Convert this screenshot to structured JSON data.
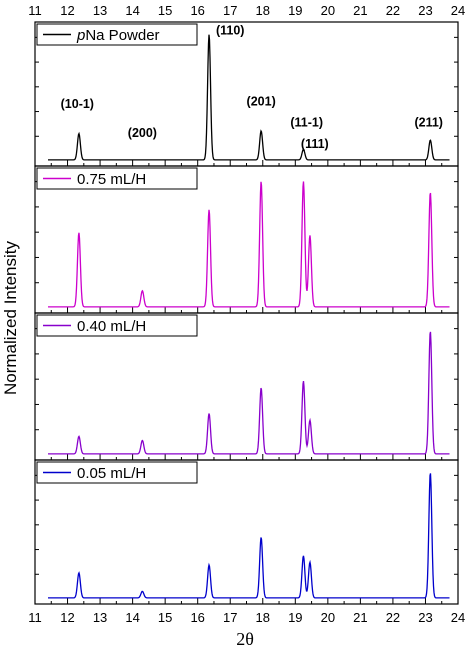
{
  "chart_data": {
    "type": "line",
    "xlabel": "2θ",
    "ylabel": "Normalized Intensity",
    "xlim": [
      11,
      24
    ],
    "x_ticks": [
      "11",
      "12",
      "13",
      "14",
      "15",
      "16",
      "17",
      "18",
      "19",
      "20",
      "21",
      "22",
      "23",
      "24"
    ],
    "grid": false,
    "legend_placement": "top-left of each panel",
    "panels": [
      {
        "name": "pNa Powder",
        "legend_label": {
          "italic": "p",
          "rest": "Na Powder"
        },
        "color": "#000000",
        "peaks": [
          {
            "x": 12.35,
            "h": 0.2
          },
          {
            "x": 16.35,
            "h": 0.95
          },
          {
            "x": 17.95,
            "h": 0.22
          },
          {
            "x": 19.25,
            "h": 0.08
          },
          {
            "x": 23.15,
            "h": 0.15
          }
        ],
        "annotations": [
          {
            "text": "(10-1)",
            "x": 12.3,
            "h": 0.4
          },
          {
            "text": "(200)",
            "x": 14.3,
            "h": 0.18
          },
          {
            "text": "(110)",
            "x": 17.0,
            "h": 0.96
          },
          {
            "text": "(201)",
            "x": 17.95,
            "h": 0.42
          },
          {
            "text": "(11-1)",
            "x": 19.35,
            "h": 0.26
          },
          {
            "text": "(111)",
            "x": 19.6,
            "h": 0.1
          },
          {
            "text": "(211)",
            "x": 23.1,
            "h": 0.26
          }
        ]
      },
      {
        "name": "0.75 mL/H",
        "legend_label": {
          "italic": "",
          "rest": "0.75 mL/H"
        },
        "color": "#cc00cc",
        "peaks": [
          {
            "x": 12.35,
            "h": 0.55
          },
          {
            "x": 14.3,
            "h": 0.12
          },
          {
            "x": 16.35,
            "h": 0.72
          },
          {
            "x": 17.95,
            "h": 0.93
          },
          {
            "x": 19.25,
            "h": 0.93
          },
          {
            "x": 19.45,
            "h": 0.53
          },
          {
            "x": 23.15,
            "h": 0.85
          }
        ]
      },
      {
        "name": "0.40 mL/H",
        "legend_label": {
          "italic": "",
          "rest": "0.40 mL/H"
        },
        "color": "#8800cc",
        "peaks": [
          {
            "x": 12.35,
            "h": 0.13
          },
          {
            "x": 14.3,
            "h": 0.1
          },
          {
            "x": 16.35,
            "h": 0.3
          },
          {
            "x": 17.95,
            "h": 0.49
          },
          {
            "x": 19.25,
            "h": 0.54
          },
          {
            "x": 19.45,
            "h": 0.25
          },
          {
            "x": 23.15,
            "h": 0.91
          }
        ]
      },
      {
        "name": "0.05 mL/H",
        "legend_label": {
          "italic": "",
          "rest": "0.05 mL/H"
        },
        "color": "#0000cc",
        "peaks": [
          {
            "x": 12.35,
            "h": 0.19
          },
          {
            "x": 14.3,
            "h": 0.05
          },
          {
            "x": 16.35,
            "h": 0.25
          },
          {
            "x": 17.95,
            "h": 0.46
          },
          {
            "x": 19.25,
            "h": 0.32
          },
          {
            "x": 19.45,
            "h": 0.27
          },
          {
            "x": 23.15,
            "h": 0.95
          }
        ]
      }
    ]
  }
}
